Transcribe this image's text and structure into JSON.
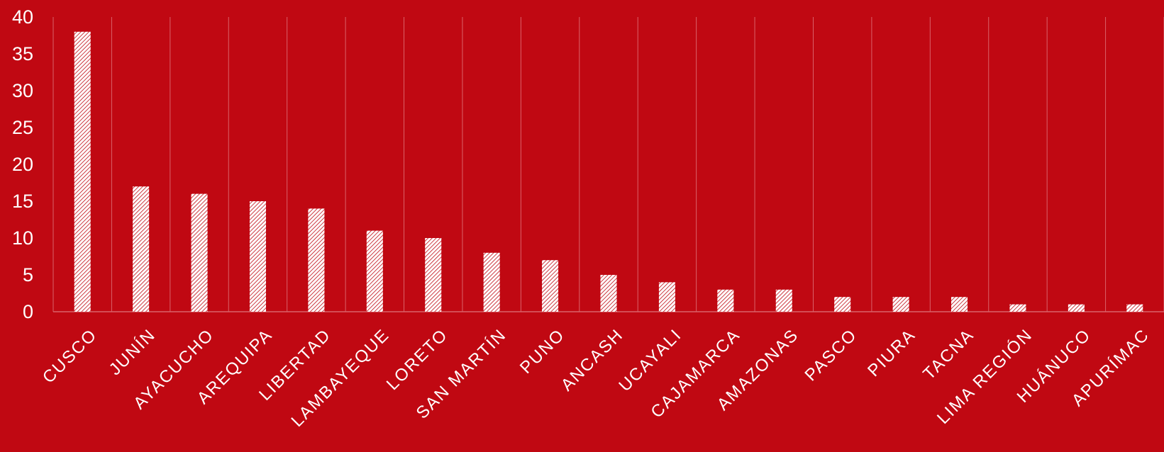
{
  "chart_data": {
    "type": "bar",
    "categories": [
      "CUSCO",
      "JUNÍN",
      "AYACUCHO",
      "AREQUIPA",
      "LIBERTAD",
      "LAMBAYEQUE",
      "LORETO",
      "SAN MARTÍN",
      "PUNO",
      "ANCASH",
      "UCAYALI",
      "CAJAMARCA",
      "AMAZONAS",
      "PASCO",
      "PIURA",
      "TACNA",
      "LIMA REGIÓN",
      "HUÁNUCO",
      "APURÍMAC"
    ],
    "values": [
      38,
      17,
      16,
      15,
      14,
      11,
      10,
      8,
      7,
      5,
      4,
      3,
      3,
      2,
      2,
      2,
      1,
      1,
      1
    ],
    "ylim": [
      0,
      40
    ],
    "yticks": [
      0,
      5,
      10,
      15,
      20,
      25,
      30,
      35,
      40
    ],
    "grid": "vertical",
    "colors": {
      "background": "#c00812",
      "bar_fill": "#ffffff",
      "bar_hatch": "#c00812",
      "gridline": "#d9626a",
      "text": "#ffffff"
    }
  }
}
